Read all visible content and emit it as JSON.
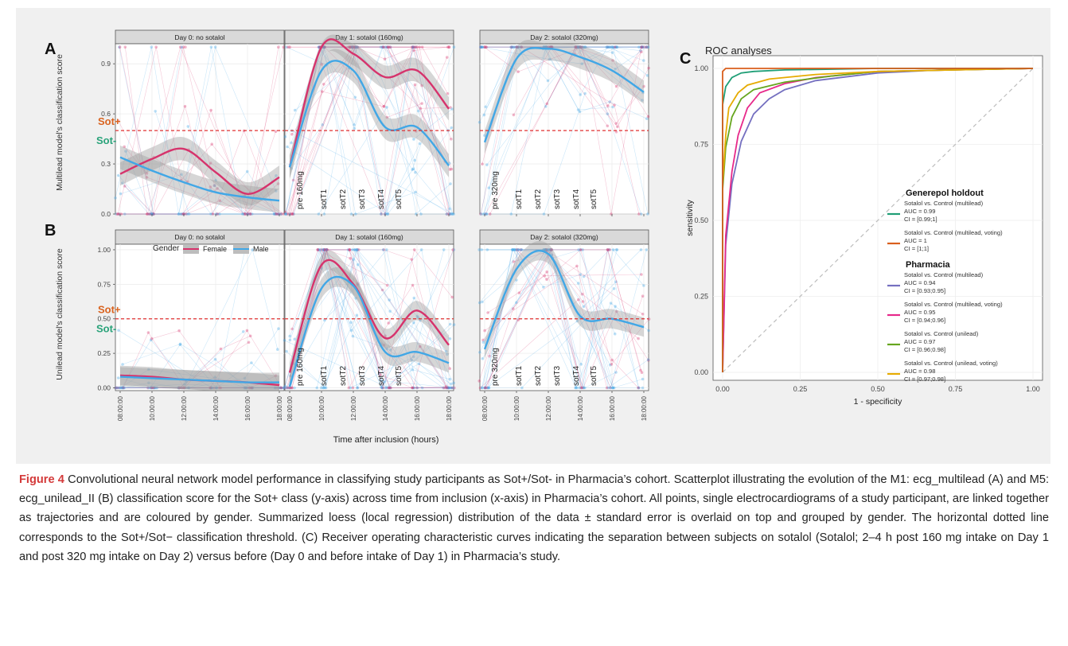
{
  "figure": {
    "label": "Figure 4",
    "caption": "Convolutional neural network model performance in classifying study participants as Sot+/Sot- in Pharmacia’s cohort. Scatterplot illustrating the evolution of the M1: ecg_multilead (A) and M5: ecg_unilead_II (B) classification score for the Sot+ class (y-axis) across time from inclusion (x-axis) in Pharmacia’s cohort. All points, single electrocardiograms of a study participant, are linked together as trajectories and are coloured by gender. Summarized loess (local regression) distribution of the data ± standard error is overlaid on top and grouped by gender. The horizontal dotted line corresponds to the Sot+/Sot− classification threshold. (C) Receiver operating characteristic curves indicating the separation between subjects on sotalol (Sotalol; 2–4 h post 160 mg intake on Day 1 and post 320 mg intake on Day 2) versus before (Day 0 and before intake of Day 1) in Pharmacia’s study."
  },
  "panel_labels": {
    "a": "A",
    "b": "B",
    "c": "C"
  },
  "threshold_labels": {
    "pos": "Sot+",
    "neg": "Sot-"
  },
  "facets": [
    "Day 0: no sotalol",
    "Day 1: sotalol (160mg)",
    "Day 2: sotalol (320mg)"
  ],
  "legend": {
    "title": "Gender",
    "female": "Female",
    "male": "Male"
  },
  "x_tick_labels": [
    "08:00:00",
    "10:00:00",
    "12:00:00",
    "14:00:00",
    "16:00:00",
    "18:00:00"
  ],
  "x_axis_label": "Time after inclusion (hours)",
  "ylabel_a": "Multilead model's classification score",
  "ylabel_b": "Unilead model's classification score",
  "yticks_a": [
    "0.0",
    "0.3",
    "0.6",
    "0.9"
  ],
  "yticks_b": [
    "0.00",
    "0.25",
    "0.50",
    "0.75",
    "1.00"
  ],
  "day1_markers": [
    "pre 160mg",
    "sotT1",
    "sotT2",
    "sotT3",
    "sotT4",
    "sotT5"
  ],
  "day2_markers": [
    "pre 320mg",
    "sotT1",
    "sotT2",
    "sotT3",
    "sotT4",
    "sotT5"
  ],
  "colors": {
    "female": "#d6336c",
    "male": "#41a7e6",
    "threshold": "#e03030",
    "sot_pos": "#d9631f",
    "sot_neg": "#2aa37a",
    "caption_label": "#d43a3a"
  },
  "roc": {
    "title": "ROC analyses",
    "xlabel": "1 - specificity",
    "ylabel": "sensitivity",
    "ticks": [
      "0.00",
      "0.25",
      "0.50",
      "0.75",
      "1.00"
    ],
    "groups": [
      {
        "title": "Generepol holdout",
        "entries": [
          {
            "name": "Sotalol vs. Control (multilead)",
            "auc": "AUC = 0.99",
            "ci": "CI = [0.99;1]",
            "color": "#1f9e76"
          },
          {
            "name": "Sotalol vs. Control (multilead, voting)",
            "auc": "AUC = 1",
            "ci": "CI = [1;1]",
            "color": "#d95f1d"
          }
        ]
      },
      {
        "title": "Pharmacia",
        "entries": [
          {
            "name": "Sotalol vs. Control (multilead)",
            "auc": "AUC = 0.94",
            "ci": "CI = [0.93;0.95]",
            "color": "#7570c0"
          },
          {
            "name": "Sotalol vs. Control (multilead, voting)",
            "auc": "AUC = 0.95",
            "ci": "CI = [0.94;0.96]",
            "color": "#e7298a"
          },
          {
            "name": "Sotalol vs. Control (unilead)",
            "auc": "AUC = 0.97",
            "ci": "CI = [0.96;0.98]",
            "color": "#66a61e"
          },
          {
            "name": "Sotalol vs. Control (unilead, voting)",
            "auc": "AUC = 0.98",
            "ci": "CI = [0.97;0.98]",
            "color": "#e6ab02"
          }
        ]
      }
    ]
  },
  "chart_data": [
    {
      "type": "line",
      "panel": "A",
      "ylabel": "Multilead model's classification score",
      "ylim": [
        0,
        1.02
      ],
      "threshold": 0.5,
      "x": [
        "08:00:00",
        "10:00:00",
        "12:00:00",
        "14:00:00",
        "16:00:00",
        "18:00:00"
      ],
      "facets": [
        {
          "name": "Day 0: no sotalol",
          "series": [
            {
              "name": "Female",
              "values": [
                0.24,
                0.33,
                0.39,
                0.25,
                0.12,
                0.22
              ]
            },
            {
              "name": "Male",
              "values": [
                0.34,
                0.26,
                0.19,
                0.13,
                0.1,
                0.08
              ]
            }
          ]
        },
        {
          "name": "Day 1: sotalol (160mg)",
          "series": [
            {
              "name": "Female",
              "values": [
                0.28,
                1.0,
                0.96,
                0.82,
                0.86,
                0.63
              ]
            },
            {
              "name": "Male",
              "values": [
                0.28,
                0.86,
                0.86,
                0.52,
                0.52,
                0.29
              ]
            }
          ]
        },
        {
          "name": "Day 2: sotalol (320mg)",
          "series": [
            {
              "name": "Male",
              "values": [
                0.43,
                0.93,
                0.99,
                0.94,
                0.86,
                0.73
              ]
            }
          ]
        }
      ]
    },
    {
      "type": "line",
      "panel": "B",
      "ylabel": "Unilead model's classification score",
      "ylim": [
        -0.02,
        1.04
      ],
      "threshold": 0.5,
      "x": [
        "08:00:00",
        "10:00:00",
        "12:00:00",
        "14:00:00",
        "16:00:00",
        "18:00:00"
      ],
      "facets": [
        {
          "name": "Day 0: no sotalol",
          "series": [
            {
              "name": "Female",
              "values": [
                0.09,
                0.08,
                0.06,
                0.05,
                0.04,
                0.02
              ]
            },
            {
              "name": "Male",
              "values": [
                0.08,
                0.07,
                0.06,
                0.05,
                0.04,
                0.04
              ]
            }
          ]
        },
        {
          "name": "Day 1: sotalol (160mg)",
          "series": [
            {
              "name": "Female",
              "values": [
                0.11,
                0.89,
                0.75,
                0.36,
                0.56,
                0.31
              ]
            },
            {
              "name": "Male",
              "values": [
                0.01,
                0.72,
                0.74,
                0.26,
                0.26,
                0.18
              ]
            }
          ]
        },
        {
          "name": "Day 2: sotalol (320mg)",
          "series": [
            {
              "name": "Male",
              "values": [
                0.28,
                0.86,
                0.97,
                0.52,
                0.5,
                0.44
              ]
            }
          ]
        }
      ]
    },
    {
      "type": "line",
      "panel": "C",
      "title": "ROC analyses",
      "xlabel": "1 - specificity",
      "ylabel": "sensitivity",
      "xlim": [
        0,
        1
      ],
      "ylim": [
        0,
        1
      ],
      "series": [
        {
          "name": "Sotalol vs. Control (multilead)",
          "group": "Generepol holdout",
          "auc": 0.99,
          "x": [
            0,
            0.0,
            0.01,
            0.03,
            0.06,
            0.1,
            0.2,
            0.5,
            1
          ],
          "y": [
            0,
            0.88,
            0.94,
            0.97,
            0.985,
            0.99,
            0.995,
            1,
            1
          ]
        },
        {
          "name": "Sotalol vs. Control (multilead, voting)",
          "group": "Generepol holdout",
          "auc": 1,
          "x": [
            0,
            0.0,
            0.0,
            0.01,
            1
          ],
          "y": [
            0,
            0.5,
            0.99,
            1,
            1
          ]
        },
        {
          "name": "Sotalol vs. Control (multilead)",
          "group": "Pharmacia",
          "auc": 0.94,
          "x": [
            0,
            0.01,
            0.03,
            0.06,
            0.1,
            0.15,
            0.2,
            0.3,
            0.5,
            0.7,
            1
          ],
          "y": [
            0,
            0.42,
            0.62,
            0.76,
            0.85,
            0.9,
            0.93,
            0.96,
            0.985,
            0.995,
            1
          ]
        },
        {
          "name": "Sotalol vs. Control (multilead, voting)",
          "group": "Pharmacia",
          "auc": 0.95,
          "x": [
            0,
            0.01,
            0.03,
            0.05,
            0.08,
            0.12,
            0.2,
            0.3,
            0.5,
            1
          ],
          "y": [
            0,
            0.45,
            0.66,
            0.78,
            0.87,
            0.92,
            0.95,
            0.97,
            0.99,
            1
          ]
        },
        {
          "name": "Sotalol vs. Control (unilead)",
          "group": "Pharmacia",
          "auc": 0.97,
          "x": [
            0,
            0.0,
            0.01,
            0.03,
            0.06,
            0.1,
            0.2,
            0.35,
            0.5,
            1
          ],
          "y": [
            0,
            0.6,
            0.74,
            0.84,
            0.9,
            0.93,
            0.955,
            0.975,
            0.99,
            1
          ]
        },
        {
          "name": "Sotalol vs. Control (unilead, voting)",
          "group": "Pharmacia",
          "auc": 0.98,
          "x": [
            0,
            0.0,
            0.01,
            0.02,
            0.05,
            0.08,
            0.15,
            0.3,
            0.5,
            1
          ],
          "y": [
            0,
            0.62,
            0.78,
            0.87,
            0.92,
            0.945,
            0.965,
            0.98,
            0.99,
            1
          ]
        }
      ]
    }
  ]
}
